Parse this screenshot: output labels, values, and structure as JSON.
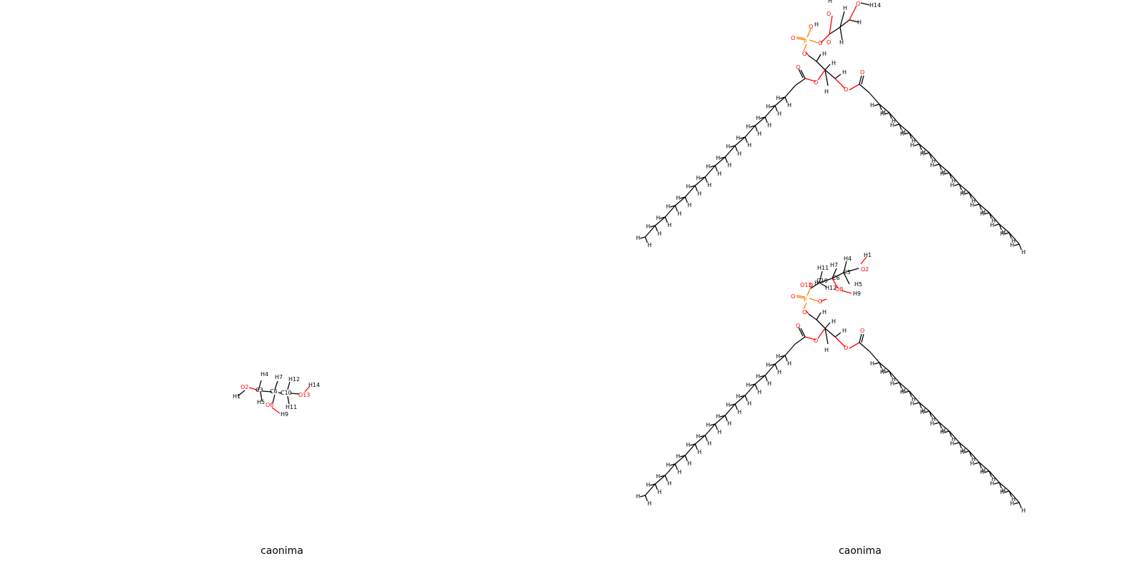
{
  "captions": {
    "left": "caonima",
    "right": "caonima"
  },
  "colors": {
    "bond": "#000000",
    "oxygen": "#ff0000",
    "phosphorus": "#ff8000"
  },
  "glycerol": {
    "labels": [
      "H1",
      "O2",
      "C3",
      "H4",
      "H5",
      "C6",
      "H7",
      "O8",
      "H9",
      "C10",
      "H11",
      "H12",
      "O13",
      "H14"
    ]
  },
  "lipid_top": {
    "labels": {
      "h14": "H14",
      "H": "H",
      "O": "O",
      "P": "P"
    }
  },
  "lipid_bottom": {
    "labels": {
      "H1": "H1",
      "O2": "O2",
      "C3": "C3",
      "H4": "H4",
      "H5": "H5",
      "C6": "C6",
      "H7": "H7",
      "O8": "O8",
      "H9": "H9",
      "C10": "C10",
      "H11": "H11",
      "H12": "H12",
      "O13": "O13",
      "H": "H",
      "O": "O",
      "P": "P"
    }
  }
}
